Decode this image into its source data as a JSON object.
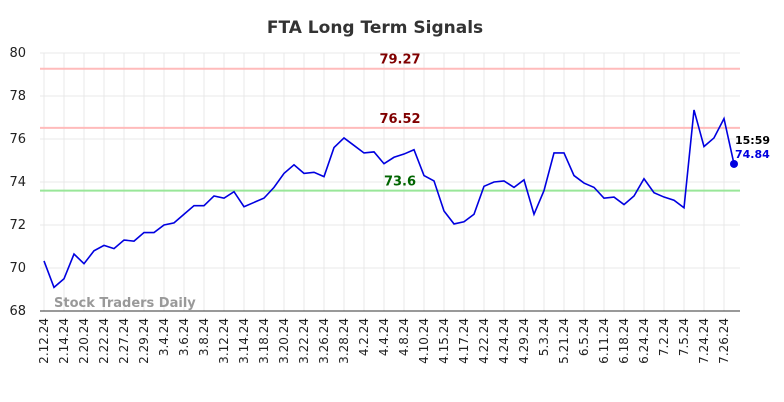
{
  "chart_data": {
    "type": "line",
    "title": "FTA Long Term Signals",
    "categories": [
      "2.12.24",
      null,
      "2.14.24",
      null,
      "2.20.24",
      null,
      "2.22.24",
      null,
      "2.27.24",
      null,
      "2.29.24",
      null,
      "3.4.24",
      null,
      "3.6.24",
      null,
      "3.8.24",
      null,
      "3.12.24",
      null,
      "3.14.24",
      null,
      "3.18.24",
      null,
      "3.20.24",
      null,
      "3.22.24",
      null,
      "3.26.24",
      null,
      "3.28.24",
      null,
      "4.2.24",
      null,
      "4.4.24",
      null,
      "4.8.24",
      null,
      "4.10.24",
      null,
      "4.15.24",
      null,
      "4.17.24",
      null,
      "4.22.24",
      null,
      "4.24.24",
      null,
      "4.29.24",
      null,
      "5.3.24",
      null,
      "5.21.24",
      null,
      "6.5.24",
      null,
      "6.11.24",
      null,
      "6.18.24",
      null,
      "6.24.24",
      null,
      "7.2.24",
      null,
      "7.5.24",
      null,
      "7.24.24",
      null,
      "7.26.24",
      null
    ],
    "series": [
      {
        "color": "#0000e0",
        "values": [
          70.33,
          69.1,
          69.5,
          70.65,
          70.2,
          70.8,
          71.05,
          70.9,
          71.3,
          71.25,
          71.65,
          71.65,
          72.0,
          72.1,
          72.5,
          72.9,
          72.9,
          73.35,
          73.25,
          73.55,
          72.85,
          73.05,
          73.25,
          73.75,
          74.4,
          74.8,
          74.4,
          74.45,
          74.25,
          75.6,
          76.05,
          75.7,
          75.35,
          75.4,
          74.85,
          75.15,
          75.3,
          75.5,
          74.3,
          74.05,
          72.65,
          72.05,
          72.15,
          72.5,
          73.8,
          74.0,
          74.05,
          73.75,
          74.1,
          72.5,
          73.6,
          75.35,
          75.35,
          74.3,
          73.95,
          73.75,
          73.25,
          73.3,
          72.95,
          73.35,
          74.15,
          73.5,
          73.3,
          73.15,
          72.8,
          77.35,
          75.65,
          76.05,
          76.95,
          74.84
        ]
      }
    ],
    "hlines": [
      {
        "value": 79.27,
        "color": "#ffbbbb",
        "label_color": "#800000"
      },
      {
        "value": 76.52,
        "color": "#ffbbbb",
        "label_color": "#800000"
      },
      {
        "value": 73.6,
        "color": "#99e699",
        "label_color": "#006400"
      }
    ],
    "last_time": "15:59",
    "watermark": "Stock Traders Daily",
    "ylim": [
      68,
      80
    ],
    "yticks": [
      68,
      70,
      72,
      74,
      76,
      78,
      80
    ],
    "grid": true
  }
}
